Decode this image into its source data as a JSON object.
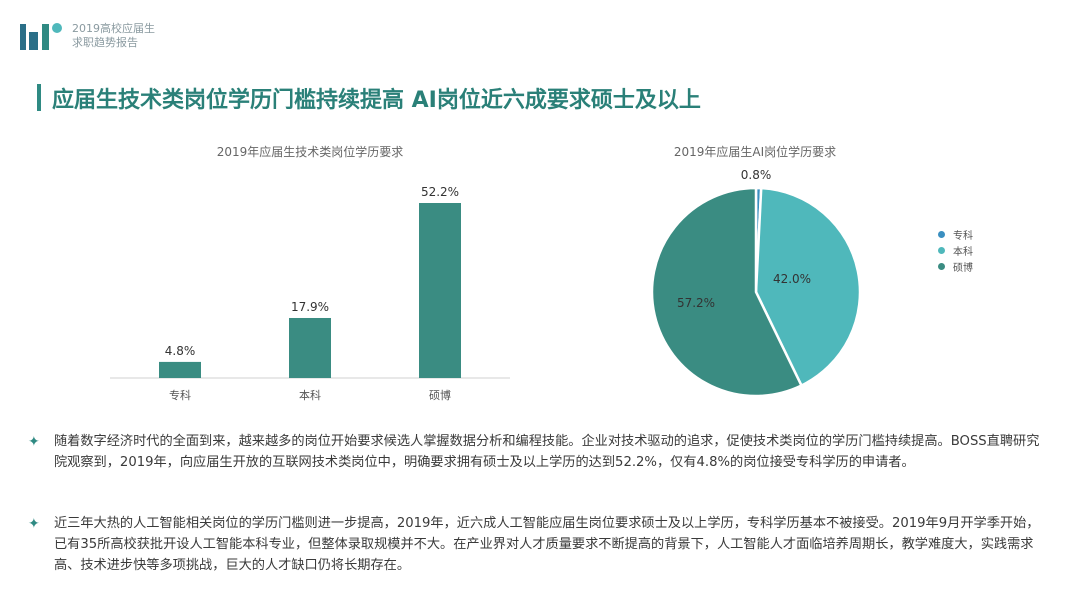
{
  "header": {
    "logo_line1": "2019高校应届生",
    "logo_line2": "求职趋势报告"
  },
  "page_title": "应届生技术类岗位学历门槛持续提高 AI岗位近六成要求硕士及以上",
  "colors": {
    "accent": "#2f8a83",
    "bar": "#3a8c82",
    "pie_zhuanke": "#3a8fc0",
    "pie_benke": "#4fb8bb",
    "pie_shuobo": "#3a8c82"
  },
  "chart_data": [
    {
      "type": "bar",
      "title": "2019年应届生技术类岗位学历要求",
      "categories": [
        "专科",
        "本科",
        "硕博"
      ],
      "values": [
        4.8,
        17.9,
        52.2
      ],
      "value_labels": [
        "4.8%",
        "17.9%",
        "52.2%"
      ],
      "ylim": [
        0,
        52.2
      ],
      "grid": false
    },
    {
      "type": "pie",
      "title": "2019年应届生AI岗位学历要求",
      "labels": [
        "专科",
        "本科",
        "硕博"
      ],
      "values": [
        0.8,
        42.0,
        57.2
      ],
      "value_labels": [
        "0.8%",
        "42.0%",
        "57.2%"
      ],
      "legend_position": "right"
    }
  ],
  "paragraphs": [
    "随着数字经济时代的全面到来，越来越多的岗位开始要求候选人掌握数据分析和编程技能。企业对技术驱动的追求，促使技术类岗位的学历门槛持续提高。BOSS直聘研究院观察到，2019年，向应届生开放的互联网技术类岗位中，明确要求拥有硕士及以上学历的达到52.2%，仅有4.8%的岗位接受专科学历的申请者。",
    "近三年大热的人工智能相关岗位的学历门槛则进一步提高，2019年，近六成人工智能应届生岗位要求硕士及以上学历，专科学历基本不被接受。2019年9月开学季开始，已有35所高校获批开设人工智能本科专业，但整体录取规模并不大。在产业界对人才质量要求不断提高的背景下，人工智能人才面临培养周期长，教学难度大，实践需求高、技术进步快等多项挑战，巨大的人才缺口仍将长期存在。"
  ],
  "bullet_symbol": "✦"
}
